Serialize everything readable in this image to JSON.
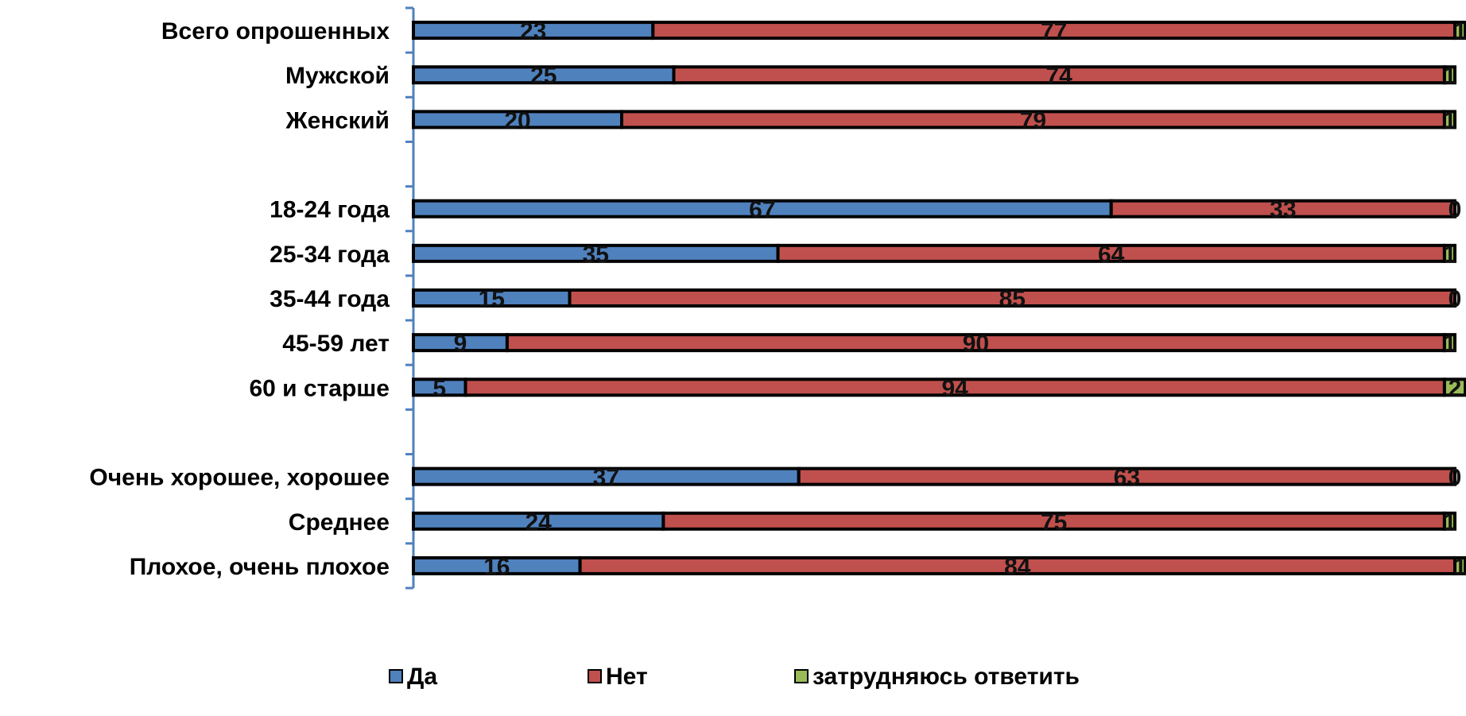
{
  "chart_data": {
    "type": "bar",
    "orientation": "horizontal",
    "stacked": "percent",
    "categories": [
      "Всего опрошенных",
      "Мужской",
      "Женский",
      "",
      "18-24 года",
      "25-34 года",
      "35-44 года",
      "45-59 лет",
      "60 и старше",
      "",
      "Очень хорошее,  хорошее",
      "Среднее",
      "Плохое,  очень плохое"
    ],
    "series": [
      {
        "name": "Да",
        "color": "#4f81bd",
        "values": [
          23,
          25,
          20,
          null,
          67,
          35,
          15,
          9,
          5,
          null,
          37,
          24,
          16
        ]
      },
      {
        "name": "Нет",
        "color": "#c0504d",
        "values": [
          77,
          74,
          79,
          null,
          33,
          64,
          85,
          90,
          94,
          null,
          63,
          75,
          84
        ]
      },
      {
        "name": "затрудняюсь ответить",
        "color": "#9bbb59",
        "values": [
          1,
          1,
          1,
          null,
          0,
          1,
          0,
          1,
          2,
          null,
          0,
          1,
          1
        ]
      }
    ],
    "title": "",
    "xlabel": "",
    "ylabel": "",
    "xlim": [
      0,
      100
    ],
    "grid": false,
    "legend_position": "bottom"
  }
}
